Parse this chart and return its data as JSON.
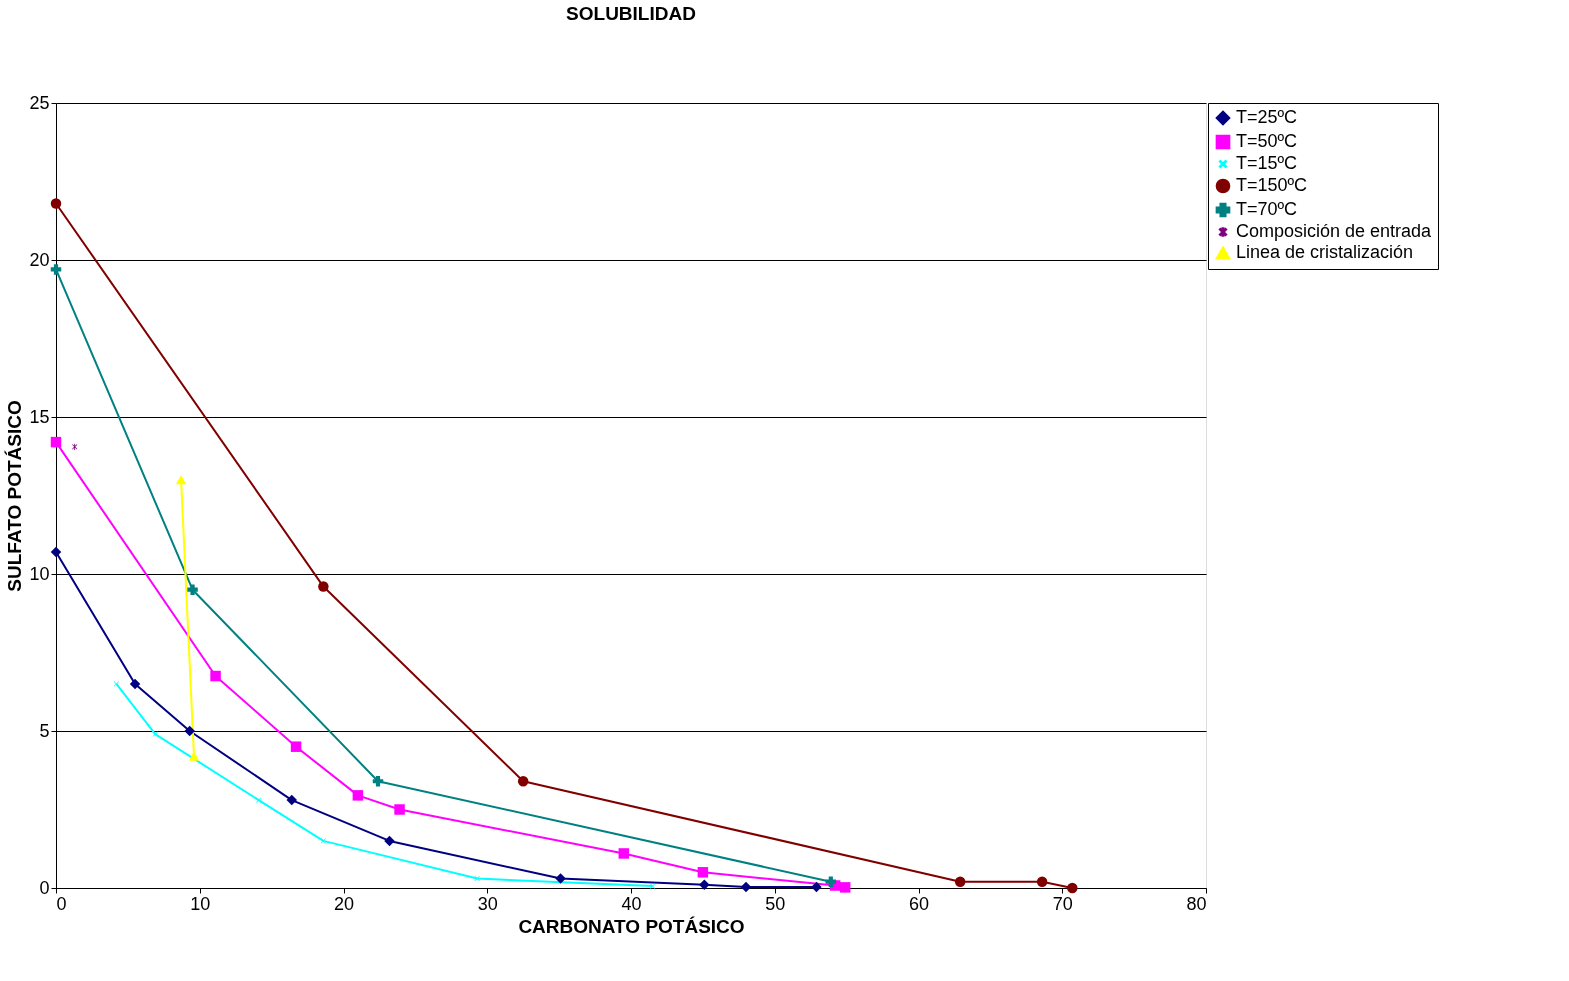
{
  "chart_data": {
    "type": "line",
    "title": "SOLUBILIDAD",
    "xlabel": "CARBONATO POTÁSICO",
    "ylabel": "SULFATO POTÁSICO",
    "xlim": [
      0,
      80
    ],
    "xticks": [
      0,
      10,
      20,
      30,
      40,
      50,
      60,
      70,
      80
    ],
    "ylim": [
      0,
      25
    ],
    "yticks": [
      0,
      5,
      10,
      15,
      20,
      25
    ],
    "grid": "y",
    "legend": "right",
    "series": [
      {
        "name": "T=25ºC",
        "color": "#000080",
        "marker": "diamond",
        "x": [
          0,
          5.5,
          9.3,
          16.4,
          23.2,
          35.1,
          45.1,
          48,
          52.9
        ],
        "values": [
          10.7,
          6.5,
          5.0,
          2.8,
          1.5,
          0.3,
          0.1,
          0.03,
          0.03
        ]
      },
      {
        "name": "T=50ºC",
        "color": "#ff00ff",
        "marker": "square",
        "x": [
          0,
          11.1,
          16.7,
          21.0,
          23.9,
          39.5,
          45,
          54.2,
          54.9
        ],
        "values": [
          14.2,
          6.75,
          4.5,
          2.95,
          2.5,
          1.1,
          0.5,
          0.08,
          0.02
        ]
      },
      {
        "name": "T=15ºC",
        "color": "#00ffff",
        "marker": "cross",
        "x": [
          4.2,
          6.9,
          14.1,
          18.6,
          29.3,
          41.5
        ],
        "values": [
          6.5,
          4.9,
          2.8,
          1.5,
          0.3,
          0.06
        ]
      },
      {
        "name": "T=150ºC",
        "color": "#800000",
        "marker": "circle",
        "x": [
          0,
          18.6,
          32.5,
          62.9,
          68.6,
          70.7
        ],
        "values": [
          21.8,
          9.6,
          3.4,
          0.2,
          0.2,
          0.0
        ]
      },
      {
        "name": "T=70ºC",
        "color": "#008080",
        "marker": "plus",
        "x": [
          0,
          9.5,
          22.4,
          53.9
        ],
        "values": [
          19.7,
          9.5,
          3.4,
          0.2
        ]
      },
      {
        "name": "Composición de entrada",
        "color": "#800080",
        "marker": "star",
        "x": [
          1.3
        ],
        "values": [
          14.05
        ]
      },
      {
        "name": "Linea de cristalización",
        "color": "#ffff00",
        "marker": "triangle",
        "x": [
          8.7,
          9.6
        ],
        "values": [
          13.0,
          4.2
        ]
      }
    ]
  }
}
